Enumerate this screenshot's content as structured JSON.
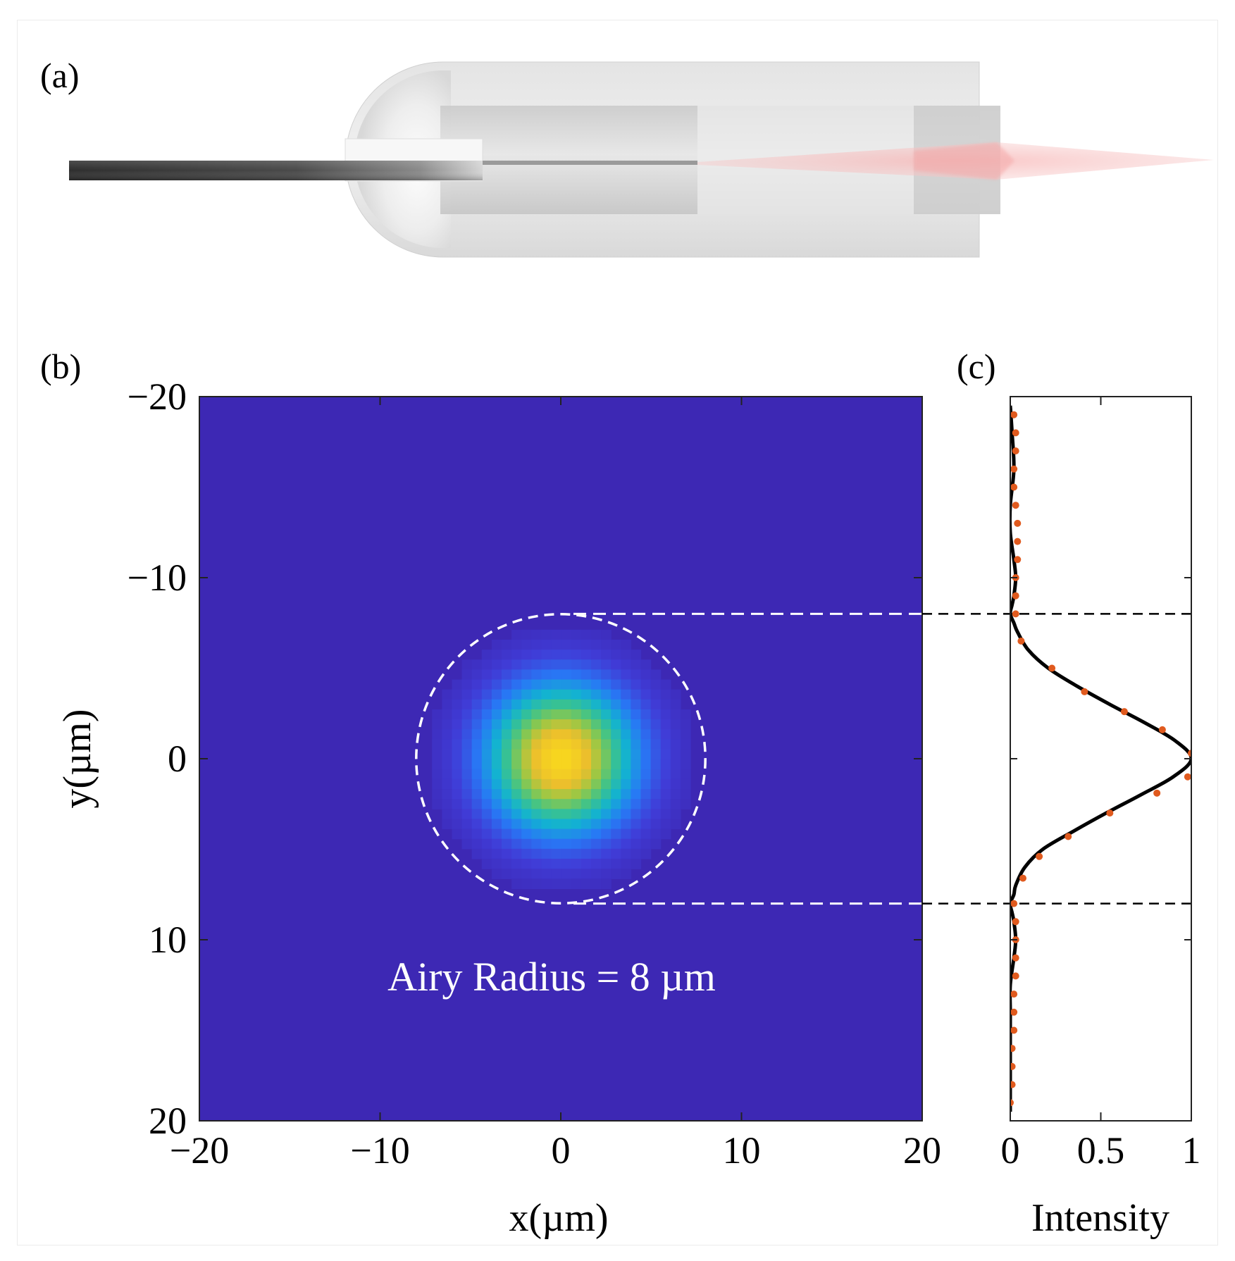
{
  "panels": {
    "a": {
      "label": "(a)"
    },
    "b": {
      "label": "(b)",
      "annotation": "Airy Radius = 8 µm",
      "xlabel": "x(µm)",
      "ylabel": "y(µm)",
      "xticks": [
        "−20",
        "−10",
        "0",
        "10",
        "20"
      ],
      "yticks": [
        "−20",
        "−10",
        "0",
        "10",
        "20"
      ]
    },
    "c": {
      "label": "(c)",
      "xlabel": "Intensity",
      "xticks": [
        "0",
        "0.5",
        "1"
      ]
    }
  },
  "colors": {
    "map_background": "#3d28b4",
    "map_peak": "#f2cc1a",
    "fit_line": "#000000",
    "data_points": "#e05a1e",
    "circle": "#ffffff"
  },
  "chart_data": [
    {
      "type": "heatmap",
      "panel": "b",
      "xlabel": "x(µm)",
      "ylabel": "y(µm)",
      "xlim": [
        -20,
        20
      ],
      "ylim": [
        -20,
        20
      ],
      "y_axis_reversed": true,
      "colormap": "parula",
      "peak_center": [
        0,
        0
      ],
      "airy_radius": 8,
      "circle": {
        "center": [
          0,
          0
        ],
        "radius": 8,
        "style": "dashed"
      },
      "annotation": "Airy Radius = 8 µm"
    },
    {
      "type": "line",
      "panel": "c",
      "xlabel": "Intensity",
      "xlim": [
        0,
        1
      ],
      "ylim": [
        -20,
        20
      ],
      "y_axis_reversed": true,
      "reference_lines_y": [
        -8,
        8
      ],
      "series": [
        {
          "style": "line",
          "y": [
            -19.5,
            -18,
            -16,
            -14,
            -12.5,
            -11,
            -10,
            -9,
            -8.5,
            -8,
            -7.5,
            -7,
            -6,
            -5,
            -4,
            -3,
            -2,
            -1,
            0,
            1,
            2,
            3,
            4,
            5,
            6,
            7,
            7.5,
            8,
            8.5,
            9,
            10,
            11,
            12.5,
            14,
            16,
            18,
            19.5
          ],
          "x": [
            0.0,
            0.01,
            0.02,
            0.0,
            0.0,
            0.02,
            0.03,
            0.02,
            0.01,
            0.0,
            0.02,
            0.04,
            0.1,
            0.21,
            0.37,
            0.55,
            0.74,
            0.91,
            1.0,
            0.9,
            0.72,
            0.53,
            0.35,
            0.18,
            0.08,
            0.03,
            0.02,
            0.0,
            0.01,
            0.02,
            0.03,
            0.02,
            0.0,
            0.0,
            0.0,
            0.0,
            0.0
          ]
        },
        {
          "style": "dots",
          "y": [
            -19,
            -18,
            -17,
            -16,
            -15,
            -14,
            -13,
            -12,
            -11,
            -10,
            -9,
            -8,
            -6.5,
            -5,
            -3.7,
            -2.6,
            -1.6,
            -0.3,
            1.0,
            1.9,
            3.0,
            4.3,
            5.4,
            6.6,
            8,
            9,
            10,
            11,
            12,
            13,
            14,
            15,
            16,
            17,
            18,
            19
          ],
          "x": [
            0.02,
            0.03,
            0.03,
            0.02,
            0.02,
            0.03,
            0.04,
            0.04,
            0.04,
            0.03,
            0.03,
            0.03,
            0.06,
            0.23,
            0.41,
            0.63,
            0.84,
            1.0,
            0.98,
            0.81,
            0.55,
            0.32,
            0.16,
            0.07,
            0.02,
            0.03,
            0.03,
            0.03,
            0.03,
            0.02,
            0.02,
            0.02,
            0.01,
            0.01,
            0.01,
            0.0
          ]
        }
      ]
    }
  ]
}
